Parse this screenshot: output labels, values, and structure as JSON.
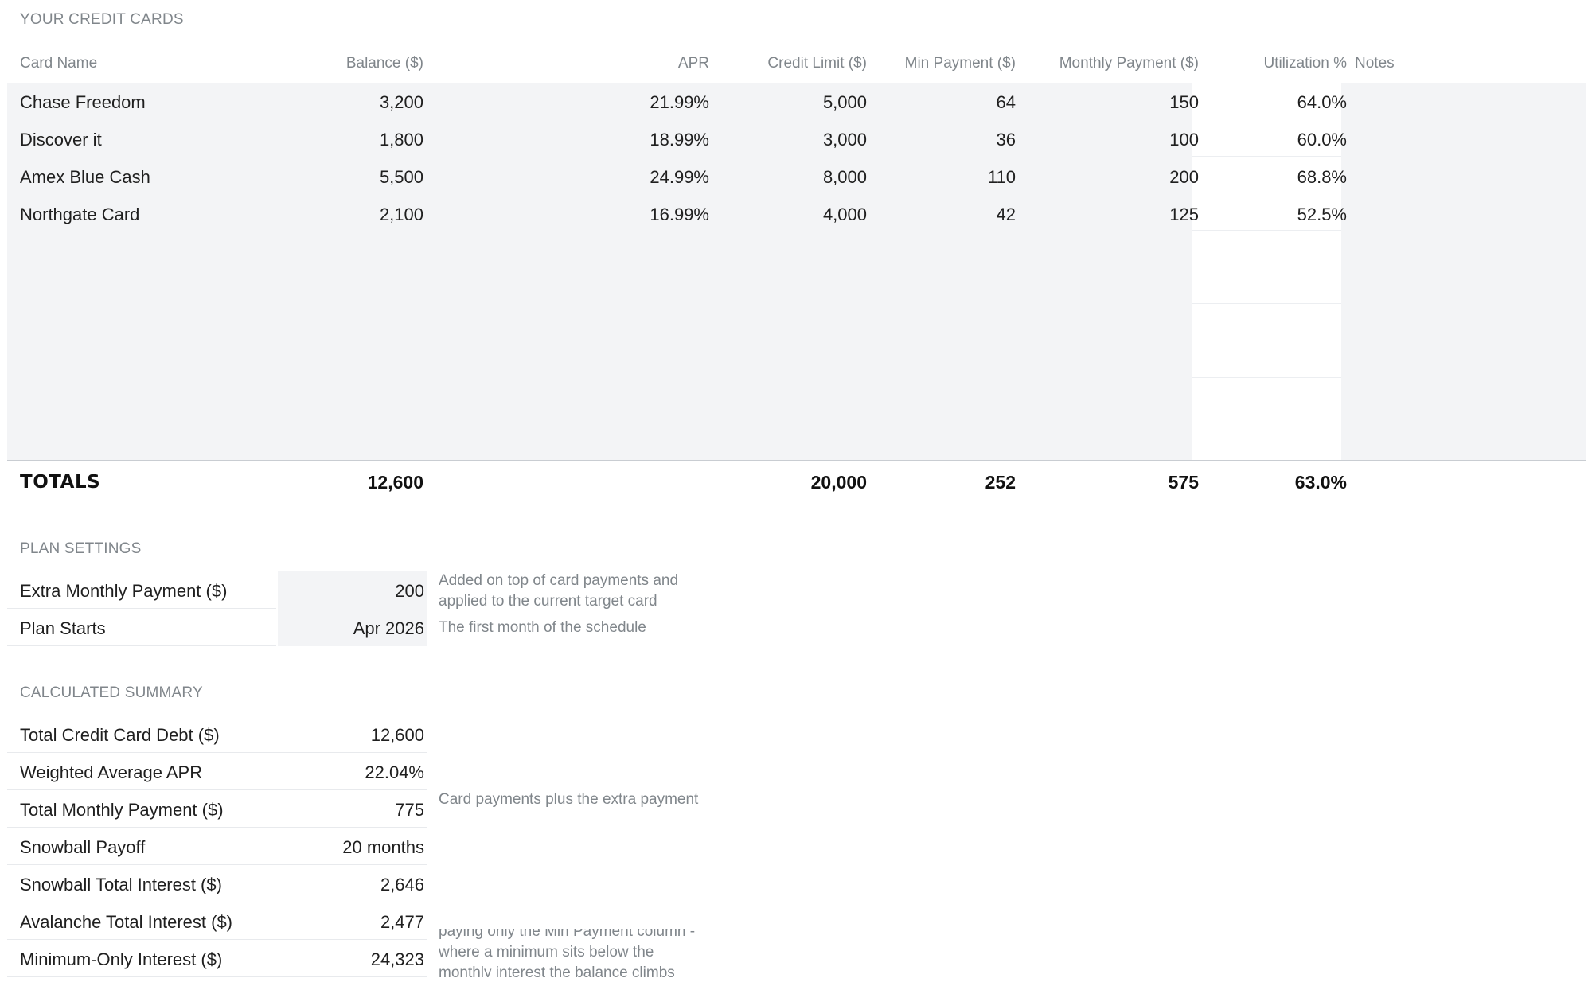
{
  "credit_cards": {
    "section_title": "YOUR CREDIT CARDS",
    "columns": {
      "name": "Card Name",
      "balance": "Balance ($)",
      "apr": "APR",
      "limit": "Credit Limit ($)",
      "min": "Min Payment ($)",
      "monthly": "Monthly Payment ($)",
      "util": "Utilization %",
      "notes": "Notes"
    },
    "rows": [
      {
        "name": "Chase Freedom",
        "balance": "3,200",
        "apr": "21.99%",
        "limit": "5,000",
        "min": "64",
        "monthly": "150",
        "util": "64.0%",
        "notes": ""
      },
      {
        "name": "Discover it",
        "balance": "1,800",
        "apr": "18.99%",
        "limit": "3,000",
        "min": "36",
        "monthly": "100",
        "util": "60.0%",
        "notes": ""
      },
      {
        "name": "Amex Blue Cash",
        "balance": "5,500",
        "apr": "24.99%",
        "limit": "8,000",
        "min": "110",
        "monthly": "200",
        "util": "68.8%",
        "notes": ""
      },
      {
        "name": "Northgate Card",
        "balance": "2,100",
        "apr": "16.99%",
        "limit": "4,000",
        "min": "42",
        "monthly": "125",
        "util": "52.5%",
        "notes": ""
      }
    ],
    "totals": {
      "label": "TOTALS",
      "balance": "12,600",
      "limit": "20,000",
      "min": "252",
      "monthly": "575",
      "util": "63.0%"
    }
  },
  "plan_settings": {
    "section_title": "PLAN SETTINGS",
    "extra_payment": {
      "label": "Extra Monthly Payment ($)",
      "value": "200",
      "note": "Added on top of card payments and applied to the current target card"
    },
    "plan_starts": {
      "label": "Plan Starts",
      "value": "Apr 2026",
      "note": "The first month of the schedule"
    }
  },
  "summary": {
    "section_title": "CALCULATED SUMMARY",
    "rows": [
      {
        "label": "Total Credit Card Debt ($)",
        "value": "12,600"
      },
      {
        "label": "Weighted Average APR",
        "value": "22.04%"
      },
      {
        "label": "Total Monthly Payment ($)",
        "value": "775"
      },
      {
        "label": "Snowball Payoff",
        "value": "20 months"
      },
      {
        "label": "Snowball Total Interest ($)",
        "value": "2,646"
      },
      {
        "label": "Avalanche Total Interest ($)",
        "value": "2,477"
      },
      {
        "label": "Minimum-Only Interest ($)",
        "value": "24,323"
      }
    ],
    "notes": {
      "total_monthly": "Card payments plus the extra payment",
      "minimum_only": "paying only the Min Payment column - where a minimum sits below the monthly interest the balance climbs"
    }
  }
}
